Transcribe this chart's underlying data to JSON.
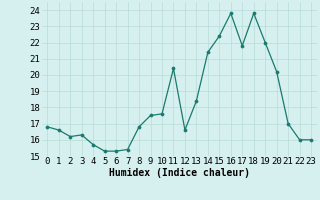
{
  "x": [
    0,
    1,
    2,
    3,
    4,
    5,
    6,
    7,
    8,
    9,
    10,
    11,
    12,
    13,
    14,
    15,
    16,
    17,
    18,
    19,
    20,
    21,
    22,
    23
  ],
  "y": [
    16.8,
    16.6,
    16.2,
    16.3,
    15.7,
    15.3,
    15.3,
    15.4,
    16.8,
    17.5,
    17.6,
    20.4,
    16.6,
    18.4,
    21.4,
    22.4,
    23.8,
    21.8,
    23.8,
    22.0,
    20.2,
    17.0,
    16.0,
    16.0
  ],
  "line_color": "#1a7a6e",
  "marker_color": "#1a7a6e",
  "bg_color": "#d6f0ef",
  "grid_color": "#b8dbd8",
  "xlabel": "Humidex (Indice chaleur)",
  "xlim": [
    -0.5,
    23.5
  ],
  "ylim": [
    15,
    24.5
  ],
  "yticks": [
    15,
    16,
    17,
    18,
    19,
    20,
    21,
    22,
    23,
    24
  ],
  "xticks": [
    0,
    1,
    2,
    3,
    4,
    5,
    6,
    7,
    8,
    9,
    10,
    11,
    12,
    13,
    14,
    15,
    16,
    17,
    18,
    19,
    20,
    21,
    22,
    23
  ],
  "xtick_labels": [
    "0",
    "1",
    "2",
    "3",
    "4",
    "5",
    "6",
    "7",
    "8",
    "9",
    "10",
    "11",
    "12",
    "13",
    "14",
    "15",
    "16",
    "17",
    "18",
    "19",
    "20",
    "21",
    "22",
    "23"
  ],
  "axis_fontsize": 7.0,
  "tick_fontsize": 6.5
}
